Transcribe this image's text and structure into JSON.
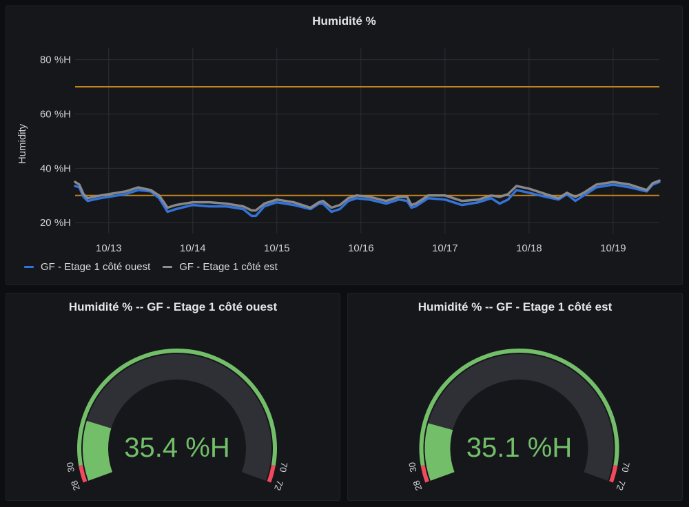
{
  "colors": {
    "panel_bg": "#16171b",
    "grid": "#2c2e33",
    "threshold": "#c4821d",
    "ouest": "#3274d9",
    "est": "#8e8e8e",
    "gauge_green": "#73bf69",
    "gauge_red": "#f2495c",
    "gauge_track": "#2f3035"
  },
  "chart_panel": {
    "title": "Humidité %"
  },
  "chart_data": {
    "type": "line",
    "title": "Humidité %",
    "ylabel": "Humidity",
    "y_unit": " %H",
    "ylim": [
      16,
      87
    ],
    "y_ticks": [
      20,
      40,
      60,
      80
    ],
    "y_tick_labels": [
      "20 %H",
      "40 %H",
      "60 %H",
      "80 %H"
    ],
    "x_tick_labels": [
      "10/13",
      "10/14",
      "10/15",
      "10/16",
      "10/17",
      "10/18",
      "10/19"
    ],
    "x_range_days": [
      12.6,
      19.55
    ],
    "thresholds": [
      70,
      30
    ],
    "grid": true,
    "legend_position": "bottom-left",
    "series": [
      {
        "name": "GF - Etage 1 côté ouest",
        "color": "#3274d9",
        "points": [
          [
            12.6,
            33.5
          ],
          [
            12.65,
            33
          ],
          [
            12.7,
            29.5
          ],
          [
            12.75,
            28
          ],
          [
            12.9,
            29
          ],
          [
            13.0,
            29.5
          ],
          [
            13.2,
            30.5
          ],
          [
            13.35,
            32
          ],
          [
            13.5,
            31.5
          ],
          [
            13.6,
            29
          ],
          [
            13.7,
            24
          ],
          [
            13.8,
            25
          ],
          [
            14.0,
            26.5
          ],
          [
            14.2,
            26
          ],
          [
            14.4,
            26
          ],
          [
            14.6,
            25
          ],
          [
            14.7,
            22.5
          ],
          [
            14.75,
            22.5
          ],
          [
            14.85,
            26
          ],
          [
            15.0,
            27.5
          ],
          [
            15.2,
            26.5
          ],
          [
            15.4,
            25
          ],
          [
            15.5,
            27
          ],
          [
            15.55,
            27
          ],
          [
            15.65,
            24
          ],
          [
            15.75,
            25
          ],
          [
            15.85,
            28
          ],
          [
            15.95,
            29
          ],
          [
            16.1,
            28.5
          ],
          [
            16.3,
            27
          ],
          [
            16.45,
            28.5
          ],
          [
            16.55,
            28
          ],
          [
            16.6,
            25.5
          ],
          [
            16.65,
            26
          ],
          [
            16.8,
            29
          ],
          [
            17.0,
            28.5
          ],
          [
            17.2,
            26.5
          ],
          [
            17.4,
            27.5
          ],
          [
            17.55,
            29
          ],
          [
            17.65,
            27
          ],
          [
            17.75,
            28.5
          ],
          [
            17.85,
            32
          ],
          [
            18.0,
            31
          ],
          [
            18.2,
            29.5
          ],
          [
            18.35,
            28.5
          ],
          [
            18.45,
            30.5
          ],
          [
            18.55,
            28
          ],
          [
            18.65,
            30
          ],
          [
            18.8,
            33
          ],
          [
            19.0,
            34
          ],
          [
            19.2,
            33
          ],
          [
            19.4,
            31.5
          ],
          [
            19.47,
            34
          ],
          [
            19.55,
            35
          ]
        ]
      },
      {
        "name": "GF - Etage 1 côté est",
        "color": "#8e8e8e",
        "points": [
          [
            12.6,
            35
          ],
          [
            12.65,
            34
          ],
          [
            12.7,
            30.5
          ],
          [
            12.75,
            29
          ],
          [
            12.9,
            30
          ],
          [
            13.0,
            30.5
          ],
          [
            13.2,
            31.5
          ],
          [
            13.35,
            33
          ],
          [
            13.5,
            32
          ],
          [
            13.6,
            30
          ],
          [
            13.7,
            25.5
          ],
          [
            13.8,
            26.5
          ],
          [
            14.0,
            27.5
          ],
          [
            14.2,
            27.5
          ],
          [
            14.4,
            27
          ],
          [
            14.6,
            26
          ],
          [
            14.7,
            24.5
          ],
          [
            14.75,
            24.5
          ],
          [
            14.85,
            27
          ],
          [
            15.0,
            28.5
          ],
          [
            15.2,
            27.5
          ],
          [
            15.4,
            25.5
          ],
          [
            15.5,
            27.5
          ],
          [
            15.55,
            28
          ],
          [
            15.65,
            25.5
          ],
          [
            15.75,
            26.5
          ],
          [
            15.85,
            29
          ],
          [
            15.95,
            30
          ],
          [
            16.1,
            29.5
          ],
          [
            16.3,
            28
          ],
          [
            16.45,
            29.5
          ],
          [
            16.55,
            29.5
          ],
          [
            16.6,
            26.5
          ],
          [
            16.65,
            27
          ],
          [
            16.8,
            30
          ],
          [
            17.0,
            30
          ],
          [
            17.2,
            28
          ],
          [
            17.4,
            28.5
          ],
          [
            17.55,
            30
          ],
          [
            17.65,
            29.5
          ],
          [
            17.75,
            30.5
          ],
          [
            17.85,
            33.5
          ],
          [
            18.0,
            32.5
          ],
          [
            18.2,
            30.5
          ],
          [
            18.35,
            29
          ],
          [
            18.45,
            31
          ],
          [
            18.55,
            29.5
          ],
          [
            18.65,
            31
          ],
          [
            18.8,
            34
          ],
          [
            19.0,
            35
          ],
          [
            19.2,
            34
          ],
          [
            19.4,
            32
          ],
          [
            19.47,
            34.5
          ],
          [
            19.55,
            35.5
          ]
        ]
      }
    ]
  },
  "gauges": [
    {
      "title": "Humidité % -- GF - Etage 1 côté ouest",
      "value": 35.4,
      "value_text": "35.4 %H",
      "min": 28,
      "max": 72,
      "min_label": "28",
      "max_label": "72",
      "low_threshold": 30,
      "high_threshold": 70,
      "low_label": "30",
      "high_label": "70"
    },
    {
      "title": "Humidité % -- GF - Etage 1 côté est",
      "value": 35.1,
      "value_text": "35.1 %H",
      "min": 28,
      "max": 72,
      "min_label": "28",
      "max_label": "72",
      "low_threshold": 30,
      "high_threshold": 70,
      "low_label": "30",
      "high_label": "70"
    }
  ]
}
